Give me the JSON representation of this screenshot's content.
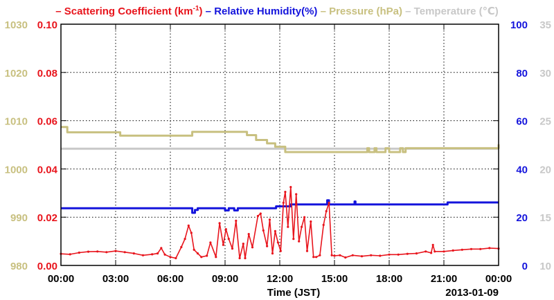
{
  "chart_data": {
    "type": "line",
    "date_label": "2013-01-09",
    "xlabel": "Time (JST)",
    "x_ticks": [
      "00:00",
      "03:00",
      "06:00",
      "09:00",
      "12:00",
      "15:00",
      "18:00",
      "21:00",
      "00:00"
    ],
    "xlim_hours": [
      0,
      24
    ],
    "grid": true,
    "legend_position": "top",
    "legend": [
      {
        "key": "scat",
        "label": "Scattering Coefficient (km",
        "sup": "-1",
        "suffix": ")",
        "color": "#e8141c"
      },
      {
        "key": "rh",
        "label": "Relative Humidity(%)",
        "sup": "",
        "suffix": "",
        "color": "#1414dc"
      },
      {
        "key": "pres",
        "label": "Pressure (hPa)",
        "sup": "",
        "suffix": "",
        "color": "#c8c080"
      },
      {
        "key": "temp",
        "label": "Temperature (",
        "sup": "",
        "suffix": "℃)",
        "color": "#c8c8c8"
      }
    ],
    "axes": {
      "pressure": {
        "ylim": [
          980,
          1030
        ],
        "ticks": [
          "980",
          "990",
          "1000",
          "1010",
          "1020",
          "1030"
        ],
        "color": "#c8c080"
      },
      "scattering": {
        "ylim": [
          0,
          0.1
        ],
        "ticks": [
          "0.00",
          "0.02",
          "0.04",
          "0.06",
          "0.08",
          "0.10"
        ],
        "color": "#e8141c"
      },
      "humidity": {
        "ylim": [
          0,
          100
        ],
        "ticks": [
          "0",
          "20",
          "40",
          "60",
          "80",
          "100"
        ],
        "color": "#1414dc"
      },
      "temperature": {
        "ylim": [
          10,
          35
        ],
        "ticks": [
          "10",
          "15",
          "20",
          "25",
          "30",
          "35"
        ],
        "color": "#c8c8c8"
      }
    },
    "series": [
      {
        "key": "pres",
        "name": "Pressure (hPa)",
        "axis": "pressure",
        "step": true,
        "x": [
          0,
          0.35,
          3.25,
          7.2,
          10.2,
          10.7,
          11.3,
          11.75,
          12.3,
          16.8,
          16.9,
          17.2,
          17.3,
          17.8,
          18.0,
          18.6,
          18.75,
          18.9,
          24
        ],
        "y": [
          1008.7,
          1007.6,
          1006.9,
          1007.7,
          1007.0,
          1006.0,
          1005.3,
          1004.6,
          1003.5,
          1004.3,
          1003.5,
          1004.3,
          1003.5,
          1004.3,
          1003.5,
          1004.3,
          1003.5,
          1004.3,
          1005.1
        ]
      },
      {
        "key": "temp",
        "name": "Temperature",
        "axis": "temperature",
        "step": true,
        "x": [
          0,
          24
        ],
        "y": [
          22.1,
          22.1
        ]
      },
      {
        "key": "rh",
        "name": "Relative Humidity(%)",
        "axis": "humidity",
        "step": true,
        "x": [
          0,
          7.2,
          7.35,
          7.5,
          9.0,
          9.2,
          9.5,
          9.7,
          11.8,
          12.6,
          14.6,
          14.7,
          16.1,
          16.15,
          16.3,
          21.2,
          24
        ],
        "y": [
          23.7,
          21.8,
          23.0,
          23.7,
          22.8,
          23.7,
          22.8,
          23.7,
          24.5,
          25.3,
          27.0,
          25.3,
          26.5,
          25.3,
          25.3,
          26.1,
          26.1
        ]
      },
      {
        "key": "scat",
        "name": "Scattering Coefficient",
        "axis": "scattering",
        "step": false,
        "x": [
          0,
          0.5,
          1.0,
          1.5,
          2.0,
          2.5,
          3.0,
          3.5,
          4.0,
          4.5,
          5.0,
          5.3,
          5.5,
          5.7,
          6.0,
          6.3,
          6.6,
          6.8,
          7.0,
          7.15,
          7.3,
          7.5,
          7.7,
          8.0,
          8.2,
          8.5,
          8.7,
          8.9,
          9.05,
          9.2,
          9.4,
          9.6,
          9.8,
          10.0,
          10.1,
          10.3,
          10.5,
          10.8,
          10.95,
          11.1,
          11.3,
          11.45,
          11.6,
          11.75,
          11.9,
          12.05,
          12.2,
          12.3,
          12.45,
          12.6,
          12.75,
          12.9,
          13.05,
          13.2,
          13.35,
          13.5,
          13.7,
          13.85,
          14.0,
          14.2,
          14.4,
          14.55,
          14.7,
          14.85,
          15.0,
          15.3,
          15.6,
          16.0,
          16.5,
          17.0,
          17.5,
          18.0,
          18.5,
          19.0,
          19.5,
          20.0,
          20.3,
          20.4,
          20.5,
          21.0,
          21.5,
          22.0,
          22.5,
          23.0,
          23.5,
          24
        ],
        "y": [
          0.0048,
          0.0046,
          0.0053,
          0.0057,
          0.0058,
          0.0055,
          0.006,
          0.0055,
          0.005,
          0.0042,
          0.0046,
          0.005,
          0.0072,
          0.0045,
          0.0035,
          0.003,
          0.0076,
          0.011,
          0.0165,
          0.0135,
          0.0065,
          0.005,
          0.0035,
          0.004,
          0.0095,
          0.0035,
          0.0175,
          0.0085,
          0.015,
          0.011,
          0.007,
          0.0185,
          0.003,
          0.009,
          0.003,
          0.013,
          0.0075,
          0.0205,
          0.0215,
          0.0145,
          0.008,
          0.019,
          0.005,
          0.0142,
          0.0095,
          0.006,
          0.026,
          0.0305,
          0.016,
          0.0325,
          0.011,
          0.0295,
          0.01,
          0.016,
          0.02,
          0.006,
          0.0182,
          0.0035,
          0.0035,
          0.0042,
          0.0168,
          0.0225,
          0.026,
          0.0042,
          0.004,
          0.0042,
          0.0033,
          0.0042,
          0.0038,
          0.0042,
          0.004,
          0.0045,
          0.0045,
          0.0048,
          0.005,
          0.0058,
          0.0052,
          0.0085,
          0.0058,
          0.0058,
          0.0062,
          0.0065,
          0.0068,
          0.0068,
          0.0072,
          0.007
        ]
      }
    ]
  }
}
